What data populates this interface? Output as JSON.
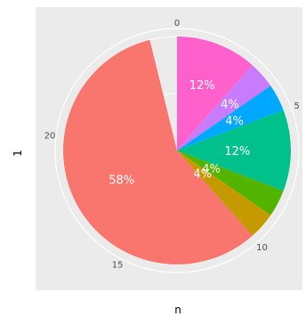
{
  "chart_data": {
    "type": "pie",
    "coord": "polar",
    "title": "",
    "xlabel": "n",
    "ylabel": "1",
    "total": 26,
    "slices": [
      {
        "value": 3,
        "label": "12%",
        "color": "#FF61CC"
      },
      {
        "value": 1,
        "label": "4%",
        "color": "#C77CFF"
      },
      {
        "value": 1,
        "label": "4%",
        "color": "#00A9FF"
      },
      {
        "value": 3,
        "label": "12%",
        "color": "#00C08B"
      },
      {
        "value": 1,
        "label": "4%",
        "color": "#53B400"
      },
      {
        "value": 1,
        "label": "4%",
        "color": "#C49A00"
      },
      {
        "value": 15,
        "label": "58%",
        "color": "#F8766D"
      }
    ],
    "ticks": [
      {
        "value": 0,
        "label": "0"
      },
      {
        "value": 5,
        "label": "5"
      },
      {
        "value": 10,
        "label": "10"
      },
      {
        "value": 15,
        "label": "15"
      },
      {
        "value": 20,
        "label": "20"
      }
    ],
    "grid": true,
    "panel_background": "#EBEBEB",
    "legend": "none"
  }
}
